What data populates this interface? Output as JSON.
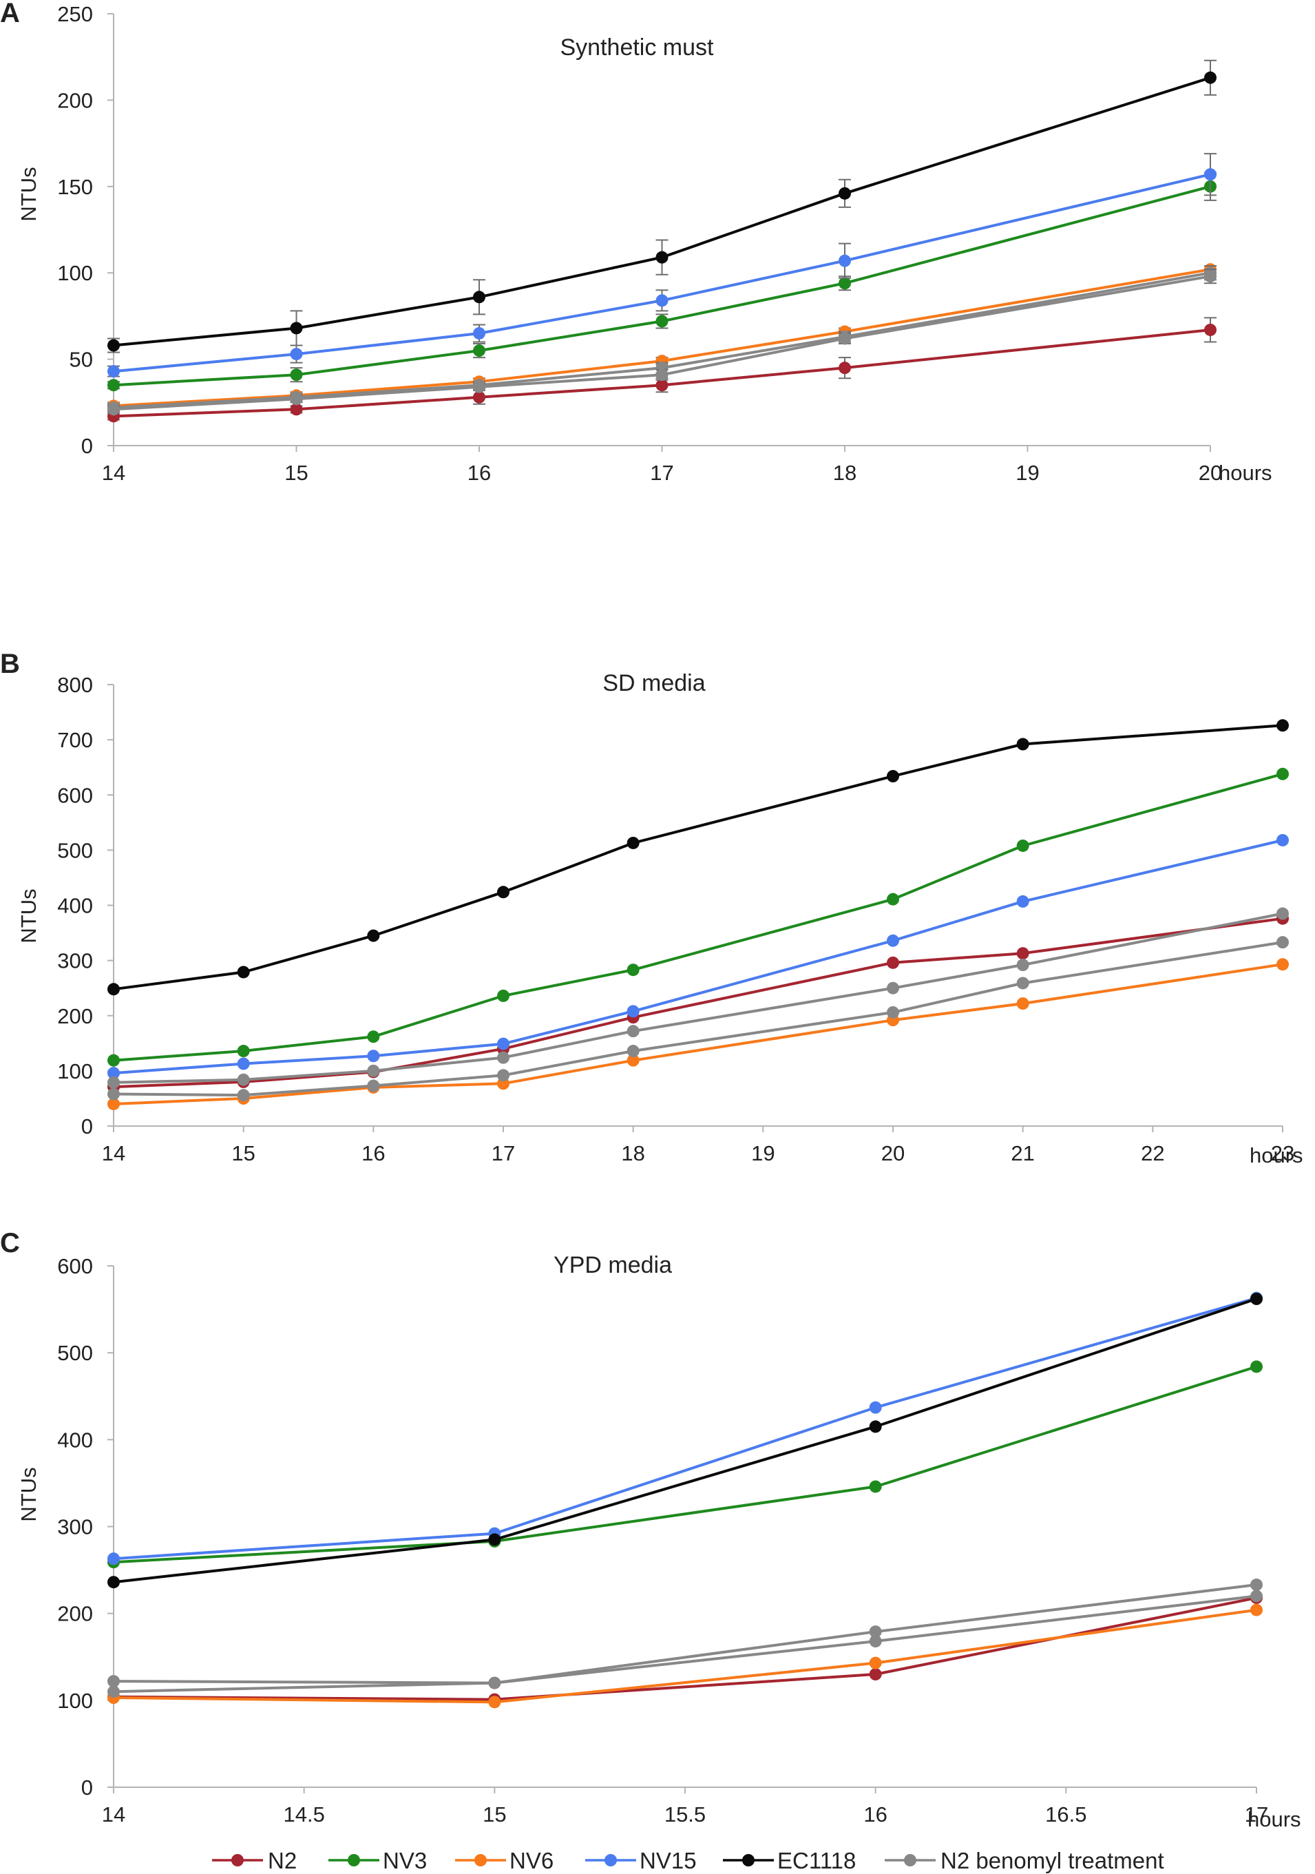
{
  "colors": {
    "N2": "#a52530",
    "NV3": "#1e8a1e",
    "NV6": "#f7791a",
    "NV15": "#4b7cef",
    "EC1118": "#0a0a0a",
    "N2 benomyl treatment": "#878787"
  },
  "legend": {
    "items": [
      {
        "key": "N2",
        "label": "N2"
      },
      {
        "key": "NV3",
        "label": "NV3"
      },
      {
        "key": "NV6",
        "label": "NV6"
      },
      {
        "key": "NV15",
        "label": "NV15"
      },
      {
        "key": "EC1118",
        "label": "EC1118"
      },
      {
        "key": "N2 benomyl treatment",
        "label": "N2 benomyl treatment"
      }
    ]
  },
  "chart_data": [
    {
      "type": "line",
      "panel": "A",
      "title": "Synthetic must",
      "xlabel": "hours",
      "ylabel": "NTUs",
      "xlim": [
        14,
        20
      ],
      "ylim": [
        0,
        250
      ],
      "xticks": [
        14,
        15,
        16,
        17,
        18,
        19,
        20
      ],
      "yticks": [
        0,
        50,
        100,
        150,
        200,
        250
      ],
      "series": [
        {
          "name": "N2",
          "x": [
            14,
            15,
            16,
            17,
            18,
            20
          ],
          "values": [
            17,
            21,
            28,
            35,
            45,
            67
          ],
          "err": [
            2,
            2,
            4,
            4,
            6,
            7
          ]
        },
        {
          "name": "NV3",
          "x": [
            14,
            15,
            16,
            17,
            18,
            20
          ],
          "values": [
            35,
            41,
            55,
            72,
            94,
            150
          ],
          "err": [
            2,
            4,
            4,
            4,
            4,
            8
          ]
        },
        {
          "name": "NV6",
          "x": [
            14,
            15,
            16,
            17,
            18,
            20
          ],
          "values": [
            23,
            29,
            37,
            49,
            66,
            102
          ],
          "err": [
            2,
            2,
            2,
            2,
            2,
            2
          ]
        },
        {
          "name": "NV15",
          "x": [
            14,
            15,
            16,
            17,
            18,
            20
          ],
          "values": [
            43,
            53,
            65,
            84,
            107,
            157
          ],
          "err": [
            3,
            5,
            5,
            6,
            10,
            12
          ]
        },
        {
          "name": "EC1118",
          "x": [
            14,
            15,
            16,
            17,
            18,
            20
          ],
          "values": [
            58,
            68,
            86,
            109,
            146,
            213
          ],
          "err": [
            4,
            10,
            10,
            10,
            8,
            10
          ]
        },
        {
          "name": "N2 benomyl treatment",
          "x": [
            14,
            15,
            16,
            17,
            18,
            20
          ],
          "values": [
            22,
            28,
            35,
            45,
            63,
            100
          ],
          "err": [
            2,
            2,
            2,
            3,
            3,
            4
          ]
        },
        {
          "name": "N2 benomyl treatment",
          "x": [
            14,
            15,
            16,
            17,
            18,
            20
          ],
          "values": [
            21,
            27,
            34,
            41,
            62,
            98
          ],
          "err": [
            2,
            2,
            2,
            3,
            3,
            4
          ]
        }
      ]
    },
    {
      "type": "line",
      "panel": "B",
      "title": "SD media",
      "xlabel": "hours",
      "ylabel": "NTUs",
      "xlim": [
        14,
        23
      ],
      "ylim": [
        0,
        800
      ],
      "xticks": [
        14,
        15,
        16,
        17,
        18,
        19,
        20,
        21,
        22,
        23
      ],
      "yticks": [
        0,
        100,
        200,
        300,
        400,
        500,
        600,
        700,
        800
      ],
      "series": [
        {
          "name": "N2",
          "x": [
            14,
            15,
            16,
            17,
            18,
            20,
            21,
            23
          ],
          "values": [
            71,
            80,
            98,
            140,
            197,
            296,
            313,
            376
          ]
        },
        {
          "name": "NV3",
          "x": [
            14,
            15,
            16,
            17,
            18,
            20,
            21,
            23
          ],
          "values": [
            119,
            136,
            162,
            236,
            283,
            411,
            508,
            638
          ]
        },
        {
          "name": "NV6",
          "x": [
            14,
            15,
            16,
            17,
            18,
            20,
            21,
            23
          ],
          "values": [
            40,
            50,
            70,
            77,
            119,
            192,
            222,
            293
          ]
        },
        {
          "name": "NV15",
          "x": [
            14,
            15,
            16,
            17,
            18,
            20,
            21,
            23
          ],
          "values": [
            96,
            113,
            127,
            149,
            208,
            336,
            407,
            518
          ]
        },
        {
          "name": "EC1118",
          "x": [
            14,
            15,
            16,
            17,
            18,
            20,
            21,
            23
          ],
          "values": [
            248,
            279,
            345,
            424,
            513,
            634,
            692,
            726
          ]
        },
        {
          "name": "N2 benomyl treatment",
          "x": [
            14,
            15,
            16,
            17,
            18,
            20,
            21,
            23
          ],
          "values": [
            79,
            84,
            100,
            124,
            172,
            250,
            292,
            385
          ]
        },
        {
          "name": "N2 benomyl treatment",
          "x": [
            14,
            15,
            16,
            17,
            18,
            20,
            21,
            23
          ],
          "values": [
            58,
            56,
            73,
            92,
            136,
            206,
            259,
            333
          ]
        }
      ]
    },
    {
      "type": "line",
      "panel": "C",
      "title": "YPD media",
      "xlabel": "hours",
      "ylabel": "NTUs",
      "xlim": [
        14,
        17
      ],
      "ylim": [
        0,
        600
      ],
      "xticks": [
        14,
        14.5,
        15,
        15.5,
        16,
        16.5,
        17
      ],
      "yticks": [
        0,
        100,
        200,
        300,
        400,
        500,
        600
      ],
      "series": [
        {
          "name": "N2",
          "x": [
            14,
            15,
            16,
            17
          ],
          "values": [
            104,
            101,
            130,
            218
          ]
        },
        {
          "name": "NV3",
          "x": [
            14,
            15,
            16,
            17
          ],
          "values": [
            259,
            283,
            346,
            484
          ]
        },
        {
          "name": "NV6",
          "x": [
            14,
            15,
            16,
            17
          ],
          "values": [
            103,
            98,
            143,
            204
          ]
        },
        {
          "name": "NV15",
          "x": [
            14,
            15,
            16,
            17
          ],
          "values": [
            263,
            292,
            437,
            563
          ]
        },
        {
          "name": "EC1118",
          "x": [
            14,
            15,
            16,
            17
          ],
          "values": [
            236,
            285,
            415,
            562
          ]
        },
        {
          "name": "N2 benomyl treatment",
          "x": [
            14,
            15,
            16,
            17
          ],
          "values": [
            122,
            120,
            179,
            233
          ]
        },
        {
          "name": "N2 benomyl treatment",
          "x": [
            14,
            15,
            16,
            17
          ],
          "values": [
            110,
            120,
            168,
            220
          ]
        }
      ]
    }
  ]
}
